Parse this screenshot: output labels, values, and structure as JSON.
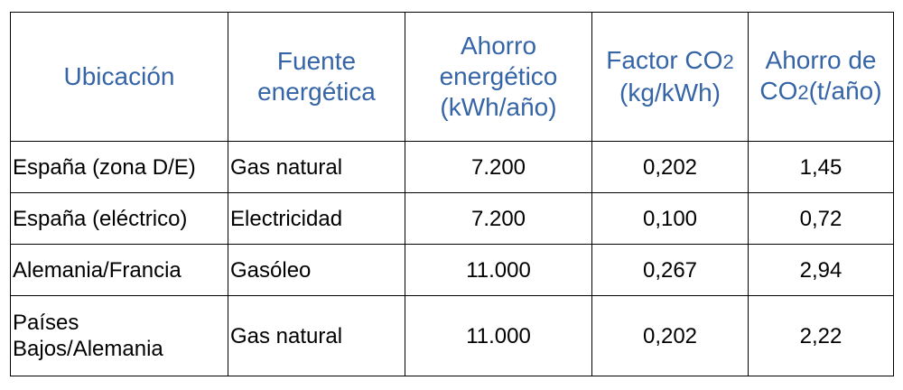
{
  "headers": {
    "location": "Ubicación",
    "source_line1": "Fuente",
    "source_line2": "energética",
    "savings_line1": "Ahorro",
    "savings_line2": "energético",
    "savings_line3": "(kWh/año)",
    "factor_line1_text": "Factor CO",
    "factor_line1_sub": "2",
    "factor_line2": "(kg/kWh)",
    "co2_line1": "Ahorro de",
    "co2_line2_text": "CO",
    "co2_line2_sub": "2",
    "co2_line2_rest": "(t/año)"
  },
  "rows": [
    {
      "location": "España (zona D/E)",
      "source": "Gas natural",
      "energy_savings": "7.200",
      "co2_factor": "0,202",
      "co2_savings": "1,45"
    },
    {
      "location": "España (eléctrico)",
      "source": "Electricidad",
      "energy_savings": "7.200",
      "co2_factor": "0,100",
      "co2_savings": "0,72"
    },
    {
      "location": "Alemania/Francia",
      "source": "Gasóleo",
      "energy_savings": "11.000",
      "co2_factor": "0,267",
      "co2_savings": "2,94"
    },
    {
      "location_line1": "Países",
      "location_line2": "Bajos/Alemania",
      "source": "Gas natural",
      "energy_savings": "11.000",
      "co2_factor": "0,202",
      "co2_savings": "2,22"
    }
  ],
  "colors": {
    "header_text": "#3565a6",
    "body_text": "#000000",
    "border": "#000000"
  }
}
